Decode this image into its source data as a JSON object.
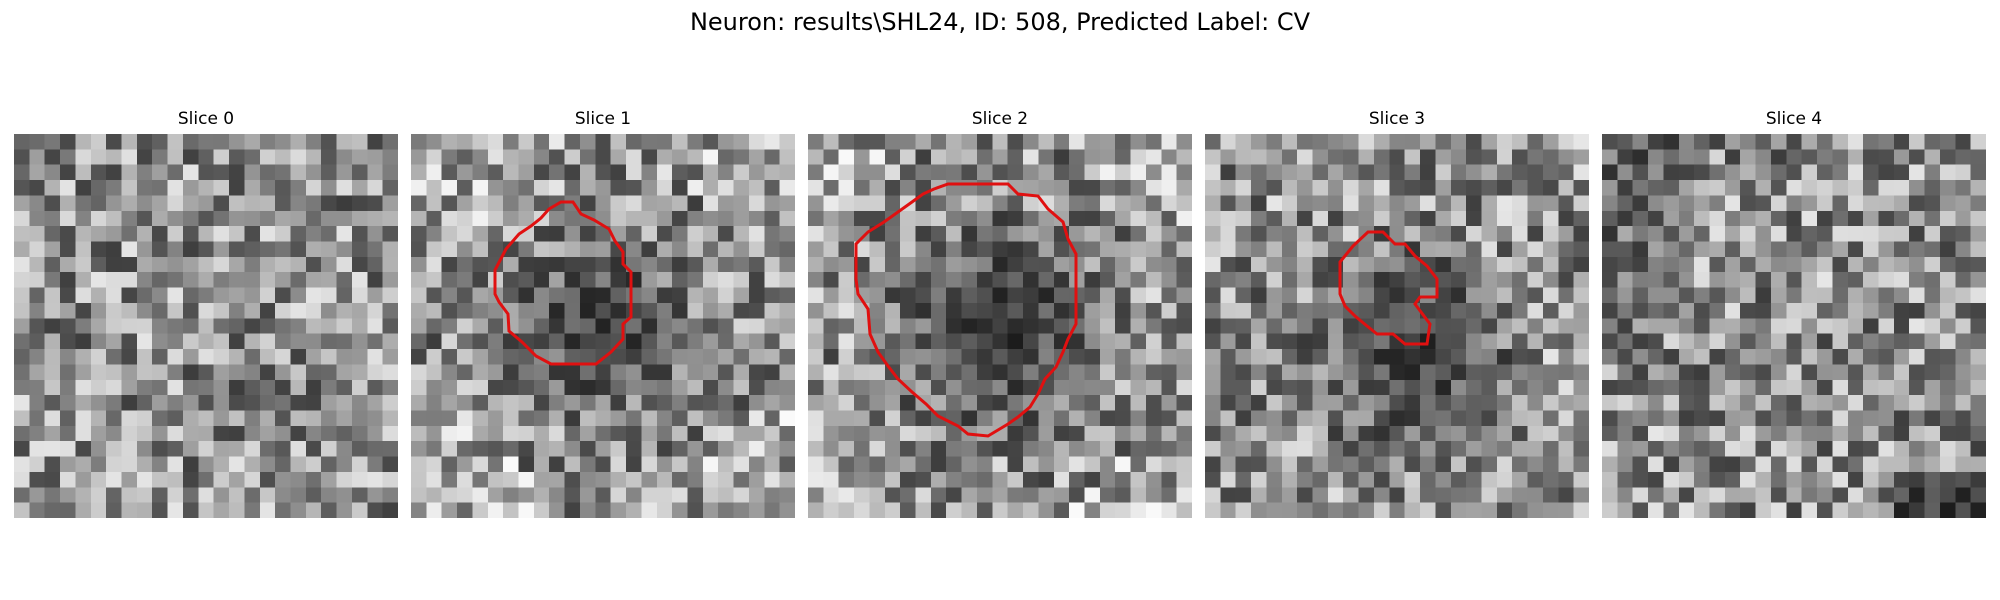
{
  "figure": {
    "title": "Neuron: results\\SHL24, ID: 508, Predicted Label: CV"
  },
  "panels": [
    {
      "label": "Slice 0",
      "has_contour": false
    },
    {
      "label": "Slice 1",
      "has_contour": true
    },
    {
      "label": "Slice 2",
      "has_contour": true
    },
    {
      "label": "Slice 3",
      "has_contour": true
    },
    {
      "label": "Slice 4",
      "has_contour": false
    }
  ],
  "colors": {
    "contour": "#e01010",
    "background": "#ffffff"
  },
  "colormap": "gray"
}
